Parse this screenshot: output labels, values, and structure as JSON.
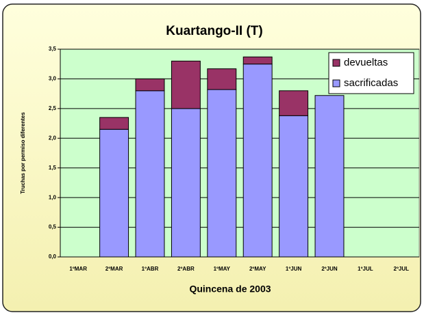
{
  "chart_data": {
    "type": "stacked_bar",
    "title": "Kuartango-II (T)",
    "x_label": "Quincena de 2003",
    "y_label": "Truchas por permiso diferentes",
    "categories": [
      "1ºMAR",
      "2ºMAR",
      "1ºABR",
      "2ºABR",
      "1ºMAY",
      "2ºMAY",
      "1ºJUN",
      "2ºJUN",
      "1ºJUL",
      "2ºJUL"
    ],
    "series": [
      {
        "name": "sacrificadas",
        "color": "#9999ff",
        "values": [
          null,
          2.15,
          2.8,
          2.5,
          2.82,
          3.25,
          2.38,
          2.72,
          null,
          null
        ]
      },
      {
        "name": "devueltas",
        "color": "#993366",
        "values": [
          null,
          0.2,
          0.2,
          0.8,
          0.35,
          0.12,
          0.42,
          null,
          null,
          null
        ]
      }
    ],
    "ylim": [
      0,
      3.5
    ],
    "yticks": [
      {
        "value": 0,
        "label": "0,0"
      },
      {
        "value": 0.5,
        "label": "0,5"
      },
      {
        "value": 1,
        "label": "1,0"
      },
      {
        "value": 1.5,
        "label": "1,5"
      },
      {
        "value": 2,
        "label": "2,0"
      },
      {
        "value": 2.5,
        "label": "2,5"
      },
      {
        "value": 3,
        "label": "3,0"
      },
      {
        "value": 3.5,
        "label": "3,5"
      }
    ],
    "grid": true,
    "legend": "top-right"
  }
}
